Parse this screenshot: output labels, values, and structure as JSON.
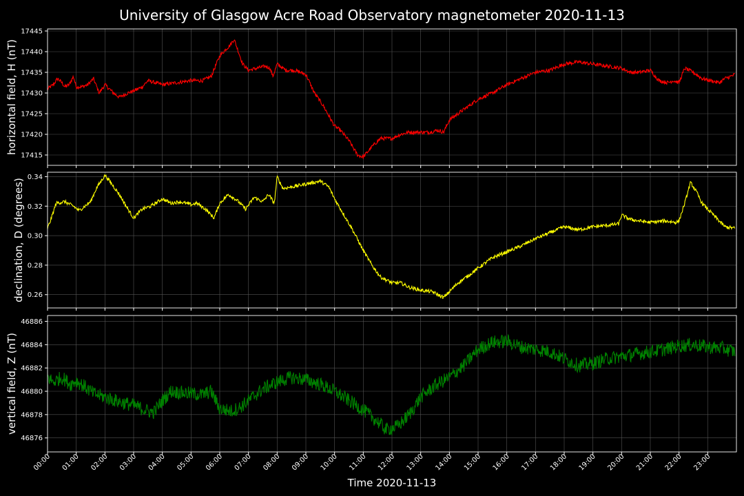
{
  "title": "University of Glasgow Acre Road Observatory magnetometer 2020-11-13",
  "chart_data": [
    {
      "type": "line",
      "ylabel": "horizontal field, H (nT)",
      "ylim": [
        17412.5,
        17445.5
      ],
      "yticks": [
        17415,
        17420,
        17425,
        17430,
        17435,
        17440,
        17445
      ],
      "ytick_labels": [
        "17415",
        "17420",
        "17425",
        "17430",
        "17435",
        "17440",
        "17445"
      ],
      "grid": true,
      "series": [
        {
          "color": "#ff0000",
          "noise": 0.45,
          "x": [
            0,
            0.2,
            0.35,
            0.5,
            0.6,
            0.75,
            0.9,
            1.0,
            1.2,
            1.4,
            1.6,
            1.8,
            2.0,
            2.3,
            2.5,
            2.8,
            3.0,
            3.3,
            3.5,
            4.0,
            4.5,
            5.0,
            5.4,
            5.7,
            6.0,
            6.2,
            6.35,
            6.5,
            6.8,
            7.0,
            7.3,
            7.6,
            7.75,
            7.85,
            8.0,
            8.3,
            8.6,
            9.0,
            9.3,
            9.6,
            10.0,
            10.2,
            10.5,
            10.8,
            11.0,
            11.3,
            11.6,
            12.0,
            12.3,
            12.6,
            13.0,
            13.3,
            13.6,
            13.8,
            14.0,
            14.3,
            14.6,
            15.0,
            15.5,
            16.0,
            16.5,
            17.0,
            17.5,
            18.0,
            18.5,
            19.0,
            19.5,
            20.0,
            20.3,
            20.6,
            21.0,
            21.3,
            21.6,
            21.8,
            22.0,
            22.2,
            22.5,
            22.8,
            23.1,
            23.4,
            23.6,
            23.8,
            23.95
          ],
          "y": [
            17431,
            17432,
            17433.5,
            17432.5,
            17431.5,
            17432,
            17434,
            17431.5,
            17431.5,
            17432,
            17433.5,
            17430,
            17432,
            17430,
            17429,
            17430,
            17430.5,
            17431.5,
            17433,
            17432,
            17432.5,
            17433,
            17433,
            17434,
            17439,
            17440.5,
            17441.5,
            17443,
            17437,
            17435.5,
            17436,
            17436.5,
            17436,
            17434,
            17437,
            17435.5,
            17435.5,
            17434.5,
            17430,
            17427,
            17422,
            17421,
            17418.5,
            17415,
            17414.5,
            17417,
            17419,
            17419,
            17420,
            17420.5,
            17420.5,
            17420.5,
            17421,
            17420.5,
            17423.5,
            17425,
            17426.5,
            17428.5,
            17430,
            17432,
            17433.5,
            17435,
            17435.5,
            17437,
            17437.5,
            17437,
            17436.5,
            17436,
            17435,
            17435,
            17435.5,
            17433,
            17432.5,
            17433,
            17432.5,
            17436,
            17435,
            17433.5,
            17433,
            17432.5,
            17433.5,
            17434,
            17434.5
          ]
        }
      ]
    },
    {
      "type": "line",
      "ylabel": "declination, D (degrees)",
      "ylim": [
        0.251,
        0.343
      ],
      "yticks": [
        0.26,
        0.28,
        0.3,
        0.32,
        0.34
      ],
      "ytick_labels": [
        "0.26",
        "0.28",
        "0.30",
        "0.32",
        "0.34"
      ],
      "grid": true,
      "series": [
        {
          "color": "#ffff00",
          "noise": 0.0012,
          "x": [
            0,
            0.1,
            0.3,
            0.6,
            0.9,
            1.1,
            1.3,
            1.5,
            1.7,
            2.0,
            2.2,
            2.5,
            2.8,
            3.0,
            3.3,
            3.6,
            4.0,
            4.3,
            4.6,
            5.0,
            5.2,
            5.5,
            5.8,
            6.0,
            6.3,
            6.6,
            6.9,
            7.2,
            7.5,
            7.7,
            7.9,
            8.0,
            8.2,
            8.5,
            9.0,
            9.5,
            9.8,
            10.0,
            10.3,
            10.6,
            11.0,
            11.3,
            11.6,
            12.0,
            12.3,
            12.6,
            13.0,
            13.4,
            13.8,
            14.0,
            14.3,
            14.6,
            15.0,
            15.5,
            16.0,
            16.5,
            17.0,
            17.5,
            18.0,
            18.5,
            19.0,
            19.5,
            19.9,
            20.0,
            20.3,
            20.6,
            21.0,
            21.5,
            21.9,
            22.0,
            22.2,
            22.4,
            22.6,
            22.8,
            23.0,
            23.3,
            23.6,
            23.95
          ],
          "y": [
            0.305,
            0.31,
            0.322,
            0.323,
            0.32,
            0.317,
            0.32,
            0.323,
            0.332,
            0.341,
            0.336,
            0.328,
            0.318,
            0.312,
            0.318,
            0.32,
            0.325,
            0.322,
            0.323,
            0.321,
            0.322,
            0.318,
            0.312,
            0.322,
            0.328,
            0.324,
            0.318,
            0.326,
            0.323,
            0.328,
            0.322,
            0.34,
            0.332,
            0.333,
            0.335,
            0.337,
            0.333,
            0.325,
            0.315,
            0.305,
            0.29,
            0.28,
            0.272,
            0.268,
            0.268,
            0.265,
            0.263,
            0.262,
            0.258,
            0.262,
            0.268,
            0.272,
            0.278,
            0.285,
            0.289,
            0.293,
            0.298,
            0.302,
            0.306,
            0.304,
            0.306,
            0.307,
            0.308,
            0.314,
            0.311,
            0.31,
            0.309,
            0.31,
            0.309,
            0.31,
            0.322,
            0.336,
            0.33,
            0.322,
            0.318,
            0.312,
            0.306,
            0.305
          ]
        }
      ]
    },
    {
      "type": "line",
      "ylabel": "vertical field, Z (nT)",
      "ylim": [
        46874.8,
        46886.5
      ],
      "yticks": [
        46876,
        46878,
        46880,
        46882,
        46884,
        46886
      ],
      "ytick_labels": [
        "46876",
        "46878",
        "46880",
        "46882",
        "46884",
        "46886"
      ],
      "grid": true,
      "series": [
        {
          "color": "#008000",
          "noise": 0.6,
          "x": [
            0,
            0.2,
            0.5,
            0.8,
            1.0,
            1.3,
            1.6,
            2.0,
            2.5,
            3.0,
            3.5,
            3.7,
            4.0,
            4.3,
            4.6,
            5.0,
            5.4,
            5.7,
            6.0,
            6.4,
            6.7,
            7.0,
            7.5,
            8.0,
            8.5,
            9.0,
            9.5,
            10.0,
            10.5,
            11.0,
            11.5,
            11.8,
            12.2,
            12.6,
            13.0,
            13.5,
            14.0,
            14.5,
            15.0,
            15.5,
            16.0,
            16.5,
            17.0,
            17.5,
            18.0,
            18.5,
            19.0,
            19.5,
            20.0,
            20.5,
            21.0,
            21.5,
            22.0,
            22.5,
            23.0,
            23.5,
            23.95
          ],
          "y": [
            46881.2,
            46880.8,
            46881.2,
            46880.6,
            46880.9,
            46880.4,
            46879.8,
            46879.5,
            46879.1,
            46878.8,
            46878.3,
            46878.2,
            46879.2,
            46880,
            46879.9,
            46879.8,
            46879.7,
            46880,
            46878.5,
            46878.3,
            46878.6,
            46879.2,
            46880.2,
            46880.8,
            46881.2,
            46881,
            46880.6,
            46880,
            46879.2,
            46878.4,
            46877.4,
            46876.7,
            46877,
            46878,
            46879.5,
            46880.5,
            46881.2,
            46882.2,
            46883.6,
            46884.2,
            46884.3,
            46883.8,
            46883.6,
            46883.4,
            46882.8,
            46882.2,
            46882.4,
            46882.8,
            46883,
            46883.2,
            46883.4,
            46883.6,
            46883.9,
            46884,
            46883.8,
            46883.7,
            46883.4
          ]
        }
      ]
    }
  ],
  "xaxis": {
    "label": "Time 2020-11-13",
    "ticks": [
      "00:00",
      "01:00",
      "02:00",
      "03:00",
      "04:00",
      "05:00",
      "06:00",
      "07:00",
      "08:00",
      "09:00",
      "10:00",
      "11:00",
      "12:00",
      "13:00",
      "14:00",
      "15:00",
      "16:00",
      "17:00",
      "18:00",
      "19:00",
      "20:00",
      "21:00",
      "22:00",
      "23:00"
    ],
    "range_hours": [
      0,
      24
    ]
  },
  "colors": {
    "background": "#000000",
    "grid": "#555555",
    "axes": "#ffffff"
  }
}
